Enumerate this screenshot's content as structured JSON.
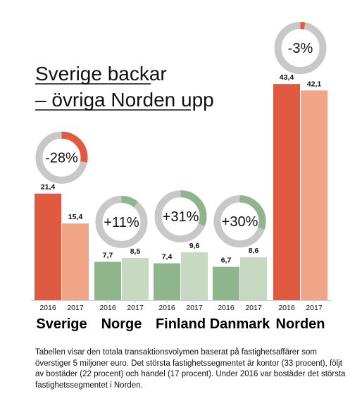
{
  "title": {
    "line1": "Sverige backar",
    "line2": "– övriga Norden upp"
  },
  "caption": "Tabellen visar den totala transaktionsvolymen baserat på fastighetsaffärer som överstiger 5 miljoner euro. Det största fastighetssegmentet är kontor (33 procent), följt av bostäder (22 procent) och handel (17 procent). Under 2016 var bostäder det största fastighetssegmentet i Norden.",
  "colors": {
    "decline_2016": "#e05a41",
    "decline_2017": "#f1a587",
    "growth_2016": "#8fb58c",
    "growth_2017": "#c6d9c1",
    "ring_track": "#c8c8c8",
    "axis": "#cfcfcf"
  },
  "chart_data": {
    "type": "bar",
    "categories": [
      "Sverige",
      "Norge",
      "Finland",
      "Danmark",
      "Norden"
    ],
    "years": [
      "2016",
      "2017"
    ],
    "series": [
      {
        "name": "2016",
        "values": [
          21.4,
          7.7,
          7.4,
          6.7,
          43.4
        ],
        "labels": [
          "21,4",
          "7,7",
          "7,4",
          "6,7",
          "43,4"
        ]
      },
      {
        "name": "2017",
        "values": [
          15.4,
          8.5,
          9.6,
          8.6,
          42.1
        ],
        "labels": [
          "15,4",
          "8,5",
          "9,6",
          "8,6",
          "42,1"
        ]
      }
    ],
    "changes": [
      {
        "label": "-28%",
        "value": -28
      },
      {
        "label": "+11%",
        "value": 11
      },
      {
        "label": "+31%",
        "value": 31
      },
      {
        "label": "+30%",
        "value": 30
      },
      {
        "label": "-3%",
        "value": -3
      }
    ],
    "ylim": [
      0,
      45
    ],
    "grid": false
  }
}
